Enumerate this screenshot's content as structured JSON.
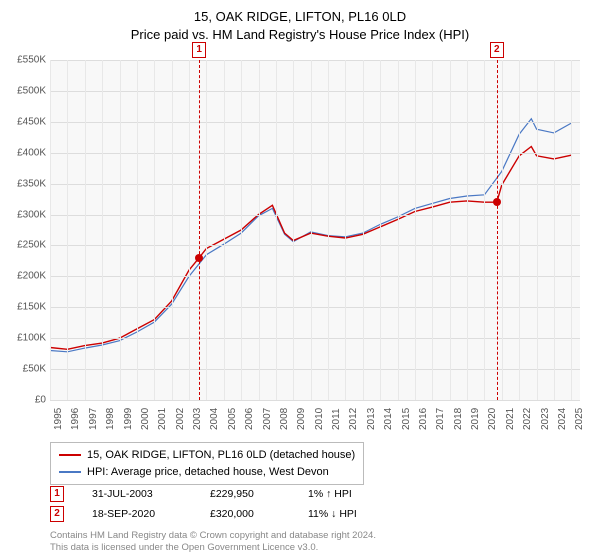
{
  "title": {
    "line1": "15, OAK RIDGE, LIFTON, PL16 0LD",
    "line2": "Price paid vs. HM Land Registry's House Price Index (HPI)"
  },
  "chart": {
    "type": "line",
    "background_color": "#f8f8f8",
    "grid_color": "#dddddd",
    "x_min": 1995,
    "x_max": 2025.5,
    "y_min": 0,
    "y_max": 550000,
    "y_ticks": [
      0,
      50000,
      100000,
      150000,
      200000,
      250000,
      300000,
      350000,
      400000,
      450000,
      500000,
      550000
    ],
    "y_tick_labels": [
      "£0",
      "£50K",
      "£100K",
      "£150K",
      "£200K",
      "£250K",
      "£300K",
      "£350K",
      "£400K",
      "£450K",
      "£500K",
      "£550K"
    ],
    "x_ticks": [
      1995,
      1996,
      1997,
      1998,
      1999,
      2000,
      2001,
      2002,
      2003,
      2004,
      2005,
      2006,
      2007,
      2008,
      2009,
      2010,
      2011,
      2012,
      2013,
      2014,
      2015,
      2016,
      2017,
      2018,
      2019,
      2020,
      2021,
      2022,
      2023,
      2024,
      2025
    ],
    "title_fontsize": 13,
    "axis_label_fontsize": 10,
    "series": [
      {
        "name": "subject",
        "label": "15, OAK RIDGE, LIFTON, PL16 0LD (detached house)",
        "color": "#cc0000",
        "line_width": 1.4,
        "points": [
          [
            1995,
            85000
          ],
          [
            1996,
            82000
          ],
          [
            1997,
            88000
          ],
          [
            1998,
            92000
          ],
          [
            1999,
            100000
          ],
          [
            2000,
            115000
          ],
          [
            2001,
            130000
          ],
          [
            2002,
            160000
          ],
          [
            2003,
            210000
          ],
          [
            2003.58,
            229950
          ],
          [
            2004,
            245000
          ],
          [
            2005,
            260000
          ],
          [
            2006,
            275000
          ],
          [
            2007,
            300000
          ],
          [
            2007.8,
            315000
          ],
          [
            2008.5,
            270000
          ],
          [
            2009,
            258000
          ],
          [
            2010,
            270000
          ],
          [
            2011,
            265000
          ],
          [
            2012,
            262000
          ],
          [
            2013,
            268000
          ],
          [
            2014,
            280000
          ],
          [
            2015,
            292000
          ],
          [
            2016,
            305000
          ],
          [
            2017,
            312000
          ],
          [
            2018,
            320000
          ],
          [
            2019,
            322000
          ],
          [
            2020,
            320000
          ],
          [
            2020.71,
            320000
          ],
          [
            2021,
            348000
          ],
          [
            2022,
            395000
          ],
          [
            2022.7,
            410000
          ],
          [
            2023,
            395000
          ],
          [
            2024,
            390000
          ],
          [
            2025,
            396000
          ]
        ]
      },
      {
        "name": "hpi",
        "label": "HPI: Average price, detached house, West Devon",
        "color": "#4a78c4",
        "line_width": 1.2,
        "points": [
          [
            1995,
            80000
          ],
          [
            1996,
            78000
          ],
          [
            1997,
            84000
          ],
          [
            1998,
            89000
          ],
          [
            1999,
            96000
          ],
          [
            2000,
            110000
          ],
          [
            2001,
            126000
          ],
          [
            2002,
            155000
          ],
          [
            2003,
            200000
          ],
          [
            2004,
            235000
          ],
          [
            2005,
            252000
          ],
          [
            2006,
            270000
          ],
          [
            2007,
            298000
          ],
          [
            2007.8,
            310000
          ],
          [
            2008.5,
            268000
          ],
          [
            2009,
            256000
          ],
          [
            2010,
            272000
          ],
          [
            2011,
            266000
          ],
          [
            2012,
            264000
          ],
          [
            2013,
            270000
          ],
          [
            2014,
            284000
          ],
          [
            2015,
            296000
          ],
          [
            2016,
            310000
          ],
          [
            2017,
            318000
          ],
          [
            2018,
            326000
          ],
          [
            2019,
            330000
          ],
          [
            2020,
            332000
          ],
          [
            2021,
            370000
          ],
          [
            2022,
            430000
          ],
          [
            2022.7,
            455000
          ],
          [
            2023,
            438000
          ],
          [
            2024,
            432000
          ],
          [
            2025,
            448000
          ]
        ]
      }
    ],
    "sale_markers": [
      {
        "idx": "1",
        "year": 2003.58,
        "price": 229950,
        "line_color": "#cc0000"
      },
      {
        "idx": "2",
        "year": 2020.71,
        "price": 320000,
        "line_color": "#cc0000"
      }
    ]
  },
  "legend": {
    "border_color": "#bbbbbb",
    "fontsize": 11
  },
  "sales_table": [
    {
      "idx": "1",
      "date": "31-JUL-2003",
      "price": "£229,950",
      "diff": "1% ↑ HPI"
    },
    {
      "idx": "2",
      "date": "18-SEP-2020",
      "price": "£320,000",
      "diff": "11% ↓ HPI"
    }
  ],
  "footer": {
    "line1": "Contains HM Land Registry data © Crown copyright and database right 2024.",
    "line2": "This data is licensed under the Open Government Licence v3.0."
  }
}
